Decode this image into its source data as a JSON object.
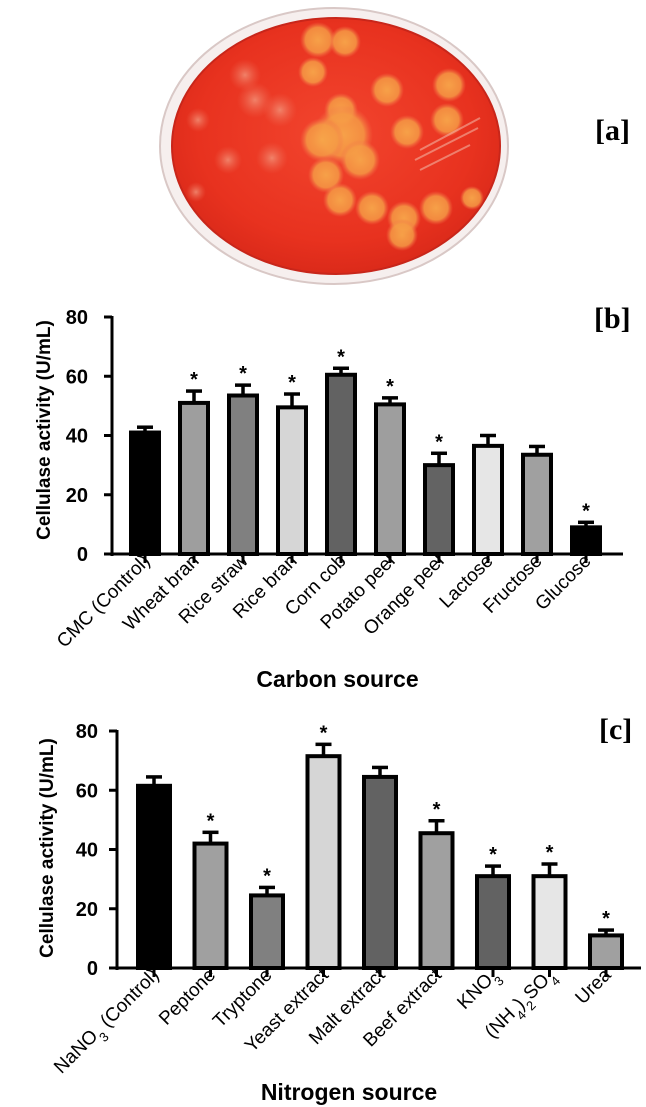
{
  "panels": {
    "a": {
      "label": "[a]"
    },
    "b": {
      "label": "[b]"
    },
    "c": {
      "label": "[c]"
    }
  },
  "chart_data": [
    {
      "panel": "b",
      "type": "bar",
      "title": "",
      "xlabel": "Carbon source",
      "ylabel": "Cellulase activity (U/mL)",
      "ylim": [
        0,
        80
      ],
      "yticks": [
        0,
        20,
        40,
        60,
        80
      ],
      "grid": false,
      "legend": null,
      "categories": [
        "CMC (Control)",
        "Wheat bran",
        "Rice straw",
        "Rice bran",
        "Corn cob",
        "Potato peel",
        "Orange peel",
        "Lactose",
        "Fructose",
        "Glucose"
      ],
      "values": [
        41,
        51,
        53.5,
        49.5,
        60.5,
        50.5,
        30,
        36.5,
        33.5,
        9
      ],
      "errors": [
        1.8,
        4,
        3.5,
        4.5,
        2.2,
        2.2,
        4,
        3.5,
        2.8,
        1.7
      ],
      "significant": [
        false,
        true,
        true,
        true,
        true,
        true,
        true,
        false,
        false,
        true
      ],
      "fills": [
        "#000000",
        "#9e9e9e",
        "#808080",
        "#d6d6d6",
        "#626262",
        "#9e9e9e",
        "#636363",
        "#e6e6e6",
        "#a0a0a0",
        "#000000"
      ],
      "annotation_symbol": "*"
    },
    {
      "panel": "c",
      "type": "bar",
      "title": "",
      "xlabel": "Nitrogen source",
      "ylabel": "Cellulase activity (U/mL)",
      "ylim": [
        0,
        80
      ],
      "yticks": [
        0,
        20,
        40,
        60,
        80
      ],
      "grid": false,
      "legend": null,
      "categories": [
        "NaNO3 (Control)",
        "Peptone",
        "Tryptone",
        "Yeast extract",
        "Malt extract",
        "Beef extract",
        "KNO3",
        "(NH4)2SO4",
        "Urea"
      ],
      "category_display": [
        [
          [
            "NaNO",
            ""
          ],
          [
            "3",
            "sub"
          ],
          [
            " (Control)",
            ""
          ]
        ],
        [
          [
            "Peptone",
            ""
          ]
        ],
        [
          [
            "Tryptone",
            ""
          ]
        ],
        [
          [
            "Yeast extract",
            ""
          ]
        ],
        [
          [
            "Malt extract",
            ""
          ]
        ],
        [
          [
            "Beef extract",
            ""
          ]
        ],
        [
          [
            "KNO",
            ""
          ],
          [
            "3",
            "sub"
          ]
        ],
        [
          [
            "(NH",
            ""
          ],
          [
            "4",
            "sub"
          ],
          [
            ")",
            ""
          ],
          [
            "2",
            "sub"
          ],
          [
            "SO",
            ""
          ],
          [
            "4",
            "sub"
          ]
        ],
        [
          [
            "Urea",
            ""
          ]
        ]
      ],
      "values": [
        61.5,
        42,
        24.5,
        71.5,
        64.5,
        45.5,
        31,
        31,
        11
      ],
      "errors": [
        3,
        3.8,
        2.7,
        4,
        3.2,
        4.2,
        3.4,
        4.1,
        1.8
      ],
      "significant": [
        false,
        true,
        true,
        true,
        false,
        true,
        true,
        true,
        true
      ],
      "fills": [
        "#000000",
        "#a0a0a0",
        "#808080",
        "#d6d6d6",
        "#626262",
        "#a0a0a0",
        "#626262",
        "#e6e6e6",
        "#a0a0a0"
      ],
      "annotation_symbol": "*"
    }
  ]
}
